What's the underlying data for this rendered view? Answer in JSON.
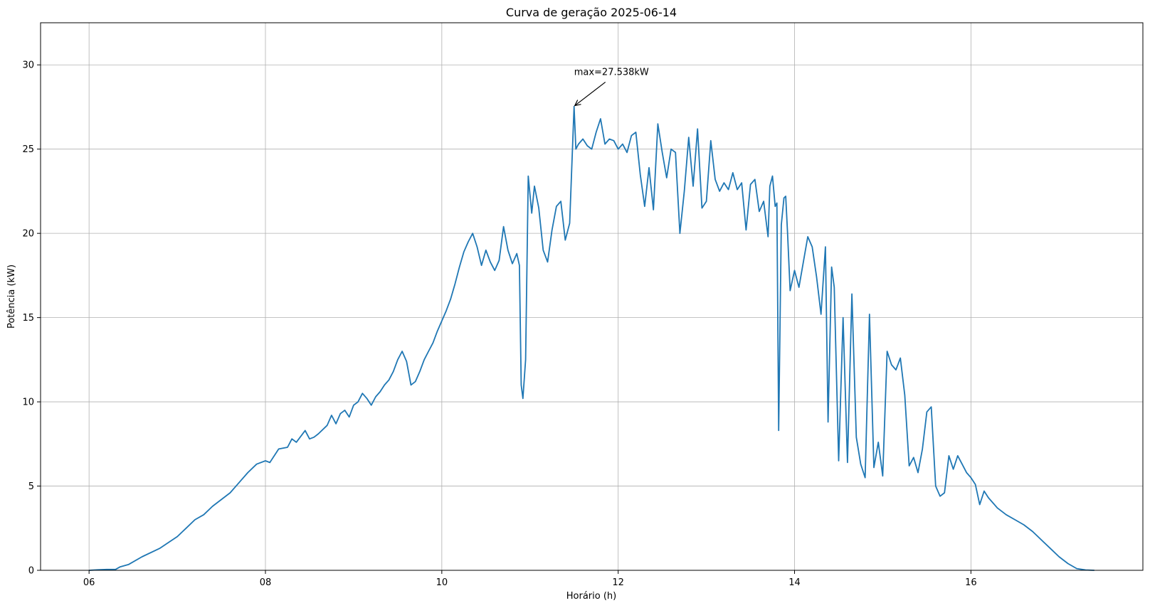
{
  "chart_data": {
    "type": "line",
    "title": "Curva de geração 2025-06-14",
    "xlabel": "Horário (h)",
    "ylabel": "Potência (kW)",
    "xlim": [
      5.45,
      17.95
    ],
    "ylim": [
      0,
      32.5
    ],
    "x_ticks": [
      6,
      8,
      10,
      12,
      14,
      16
    ],
    "x_tick_labels": [
      "06",
      "08",
      "10",
      "12",
      "14",
      "16"
    ],
    "y_ticks": [
      0,
      5,
      10,
      15,
      20,
      25,
      30
    ],
    "y_tick_labels": [
      "0",
      "5",
      "10",
      "15",
      "20",
      "25",
      "30"
    ],
    "grid": true,
    "line_color": "#1f77b4",
    "annotation": {
      "text": "max=27.538kW",
      "point": [
        11.5,
        27.538
      ],
      "text_at": [
        11.5,
        29.4
      ]
    },
    "series": [
      {
        "values": [
          [
            6.0,
            0.0
          ],
          [
            6.1,
            0.03
          ],
          [
            6.2,
            0.05
          ],
          [
            6.3,
            0.05
          ],
          [
            6.35,
            0.2
          ],
          [
            6.45,
            0.35
          ],
          [
            6.6,
            0.8
          ],
          [
            6.8,
            1.3
          ],
          [
            7.0,
            2.0
          ],
          [
            7.1,
            2.5
          ],
          [
            7.2,
            3.0
          ],
          [
            7.3,
            3.3
          ],
          [
            7.4,
            3.8
          ],
          [
            7.5,
            4.2
          ],
          [
            7.6,
            4.6
          ],
          [
            7.7,
            5.2
          ],
          [
            7.8,
            5.8
          ],
          [
            7.9,
            6.3
          ],
          [
            8.0,
            6.5
          ],
          [
            8.05,
            6.4
          ],
          [
            8.15,
            7.2
          ],
          [
            8.25,
            7.3
          ],
          [
            8.3,
            7.8
          ],
          [
            8.35,
            7.6
          ],
          [
            8.45,
            8.3
          ],
          [
            8.5,
            7.8
          ],
          [
            8.55,
            7.9
          ],
          [
            8.6,
            8.1
          ],
          [
            8.7,
            8.6
          ],
          [
            8.75,
            9.2
          ],
          [
            8.8,
            8.7
          ],
          [
            8.85,
            9.3
          ],
          [
            8.9,
            9.5
          ],
          [
            8.95,
            9.1
          ],
          [
            9.0,
            9.8
          ],
          [
            9.05,
            10.0
          ],
          [
            9.1,
            10.5
          ],
          [
            9.15,
            10.2
          ],
          [
            9.2,
            9.8
          ],
          [
            9.25,
            10.3
          ],
          [
            9.3,
            10.6
          ],
          [
            9.35,
            11.0
          ],
          [
            9.4,
            11.3
          ],
          [
            9.45,
            11.8
          ],
          [
            9.5,
            12.5
          ],
          [
            9.55,
            13.0
          ],
          [
            9.6,
            12.4
          ],
          [
            9.65,
            11.0
          ],
          [
            9.7,
            11.2
          ],
          [
            9.75,
            11.8
          ],
          [
            9.8,
            12.5
          ],
          [
            9.85,
            13.0
          ],
          [
            9.9,
            13.5
          ],
          [
            9.95,
            14.2
          ],
          [
            10.0,
            14.8
          ],
          [
            10.05,
            15.4
          ],
          [
            10.1,
            16.1
          ],
          [
            10.15,
            17.0
          ],
          [
            10.2,
            18.0
          ],
          [
            10.25,
            18.9
          ],
          [
            10.3,
            19.5
          ],
          [
            10.35,
            20.0
          ],
          [
            10.4,
            19.2
          ],
          [
            10.45,
            18.1
          ],
          [
            10.5,
            19.0
          ],
          [
            10.55,
            18.3
          ],
          [
            10.6,
            17.8
          ],
          [
            10.65,
            18.4
          ],
          [
            10.7,
            20.4
          ],
          [
            10.75,
            19.0
          ],
          [
            10.8,
            18.2
          ],
          [
            10.85,
            18.8
          ],
          [
            10.88,
            18.1
          ],
          [
            10.9,
            11.0
          ],
          [
            10.92,
            10.2
          ],
          [
            10.95,
            12.5
          ],
          [
            10.98,
            23.4
          ],
          [
            11.02,
            21.2
          ],
          [
            11.05,
            22.8
          ],
          [
            11.1,
            21.5
          ],
          [
            11.15,
            19.0
          ],
          [
            11.2,
            18.3
          ],
          [
            11.25,
            20.2
          ],
          [
            11.3,
            21.6
          ],
          [
            11.35,
            21.9
          ],
          [
            11.4,
            19.6
          ],
          [
            11.45,
            20.6
          ],
          [
            11.5,
            27.538
          ],
          [
            11.52,
            25.0
          ],
          [
            11.55,
            25.3
          ],
          [
            11.6,
            25.6
          ],
          [
            11.65,
            25.2
          ],
          [
            11.7,
            25.0
          ],
          [
            11.75,
            26.0
          ],
          [
            11.8,
            26.8
          ],
          [
            11.85,
            25.3
          ],
          [
            11.9,
            25.6
          ],
          [
            11.95,
            25.5
          ],
          [
            12.0,
            25.0
          ],
          [
            12.05,
            25.3
          ],
          [
            12.1,
            24.8
          ],
          [
            12.15,
            25.8
          ],
          [
            12.2,
            26.0
          ],
          [
            12.25,
            23.5
          ],
          [
            12.3,
            21.6
          ],
          [
            12.35,
            23.9
          ],
          [
            12.4,
            21.4
          ],
          [
            12.45,
            26.5
          ],
          [
            12.5,
            24.8
          ],
          [
            12.55,
            23.3
          ],
          [
            12.6,
            25.0
          ],
          [
            12.65,
            24.8
          ],
          [
            12.7,
            20.0
          ],
          [
            12.75,
            22.5
          ],
          [
            12.8,
            25.7
          ],
          [
            12.85,
            22.8
          ],
          [
            12.9,
            26.2
          ],
          [
            12.95,
            21.5
          ],
          [
            13.0,
            21.9
          ],
          [
            13.05,
            25.5
          ],
          [
            13.1,
            23.2
          ],
          [
            13.15,
            22.5
          ],
          [
            13.2,
            23.0
          ],
          [
            13.25,
            22.6
          ],
          [
            13.3,
            23.6
          ],
          [
            13.35,
            22.6
          ],
          [
            13.4,
            23.0
          ],
          [
            13.45,
            20.2
          ],
          [
            13.5,
            22.9
          ],
          [
            13.55,
            23.2
          ],
          [
            13.6,
            21.3
          ],
          [
            13.65,
            21.9
          ],
          [
            13.7,
            19.8
          ],
          [
            13.72,
            22.8
          ],
          [
            13.75,
            23.4
          ],
          [
            13.78,
            21.6
          ],
          [
            13.8,
            21.8
          ],
          [
            13.82,
            8.3
          ],
          [
            13.85,
            20.5
          ],
          [
            13.88,
            22.1
          ],
          [
            13.9,
            22.2
          ],
          [
            13.92,
            20.1
          ],
          [
            13.95,
            16.6
          ],
          [
            14.0,
            17.8
          ],
          [
            14.05,
            16.8
          ],
          [
            14.1,
            18.3
          ],
          [
            14.15,
            19.8
          ],
          [
            14.2,
            19.2
          ],
          [
            14.25,
            17.4
          ],
          [
            14.3,
            15.2
          ],
          [
            14.35,
            19.2
          ],
          [
            14.38,
            8.8
          ],
          [
            14.42,
            18.0
          ],
          [
            14.45,
            16.8
          ],
          [
            14.5,
            6.5
          ],
          [
            14.55,
            15.0
          ],
          [
            14.6,
            6.4
          ],
          [
            14.65,
            16.4
          ],
          [
            14.7,
            7.9
          ],
          [
            14.75,
            6.3
          ],
          [
            14.8,
            5.5
          ],
          [
            14.85,
            15.2
          ],
          [
            14.9,
            6.1
          ],
          [
            14.95,
            7.6
          ],
          [
            15.0,
            5.6
          ],
          [
            15.05,
            13.0
          ],
          [
            15.1,
            12.2
          ],
          [
            15.15,
            11.9
          ],
          [
            15.2,
            12.6
          ],
          [
            15.25,
            10.4
          ],
          [
            15.3,
            6.2
          ],
          [
            15.35,
            6.7
          ],
          [
            15.4,
            5.8
          ],
          [
            15.45,
            7.2
          ],
          [
            15.5,
            9.4
          ],
          [
            15.55,
            9.7
          ],
          [
            15.6,
            5.0
          ],
          [
            15.65,
            4.4
          ],
          [
            15.7,
            4.6
          ],
          [
            15.75,
            6.8
          ],
          [
            15.8,
            6.0
          ],
          [
            15.85,
            6.8
          ],
          [
            15.9,
            6.3
          ],
          [
            15.95,
            5.8
          ],
          [
            16.0,
            5.5
          ],
          [
            16.05,
            5.1
          ],
          [
            16.1,
            3.9
          ],
          [
            16.15,
            4.7
          ],
          [
            16.2,
            4.3
          ],
          [
            16.3,
            3.7
          ],
          [
            16.4,
            3.3
          ],
          [
            16.5,
            3.0
          ],
          [
            16.6,
            2.7
          ],
          [
            16.7,
            2.3
          ],
          [
            16.8,
            1.8
          ],
          [
            16.9,
            1.3
          ],
          [
            17.0,
            0.8
          ],
          [
            17.1,
            0.4
          ],
          [
            17.2,
            0.1
          ],
          [
            17.3,
            0.02
          ],
          [
            17.4,
            0.0
          ]
        ]
      }
    ]
  }
}
